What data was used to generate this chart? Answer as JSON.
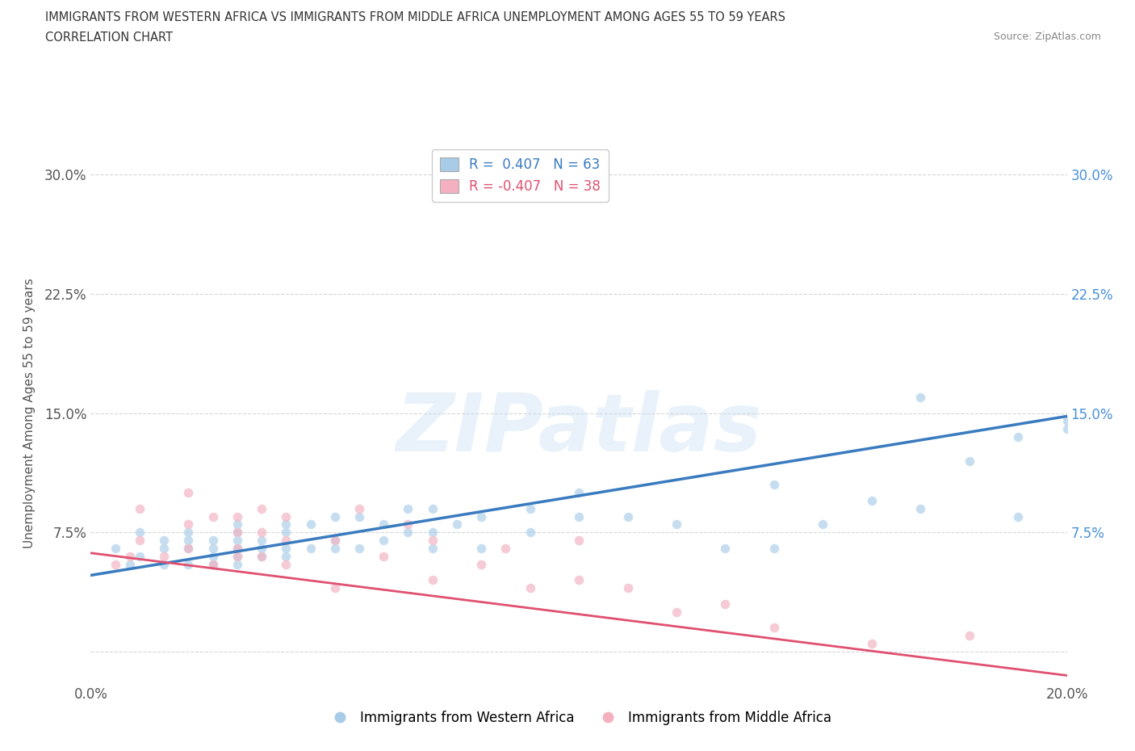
{
  "title_line1": "IMMIGRANTS FROM WESTERN AFRICA VS IMMIGRANTS FROM MIDDLE AFRICA UNEMPLOYMENT AMONG AGES 55 TO 59 YEARS",
  "title_line2": "CORRELATION CHART",
  "source_text": "Source: ZipAtlas.com",
  "ylabel": "Unemployment Among Ages 55 to 59 years",
  "xlim": [
    0.0,
    0.2
  ],
  "ylim": [
    -0.02,
    0.32
  ],
  "r_blue": 0.407,
  "n_blue": 63,
  "r_pink": -0.407,
  "n_pink": 38,
  "blue_color": "#a8cce8",
  "pink_color": "#f4b0c0",
  "blue_line_color": "#3a7bbf",
  "pink_line_color": "#e05070",
  "legend_blue_label": "R =  0.407   N = 63",
  "legend_pink_label": "R = -0.407   N = 38",
  "blue_scatter_x": [
    0.005,
    0.008,
    0.01,
    0.01,
    0.015,
    0.015,
    0.015,
    0.02,
    0.02,
    0.02,
    0.02,
    0.025,
    0.025,
    0.025,
    0.025,
    0.03,
    0.03,
    0.03,
    0.03,
    0.03,
    0.03,
    0.035,
    0.035,
    0.035,
    0.04,
    0.04,
    0.04,
    0.04,
    0.045,
    0.045,
    0.05,
    0.05,
    0.05,
    0.055,
    0.055,
    0.06,
    0.06,
    0.065,
    0.065,
    0.07,
    0.07,
    0.07,
    0.075,
    0.08,
    0.08,
    0.09,
    0.09,
    0.1,
    0.1,
    0.11,
    0.12,
    0.13,
    0.14,
    0.14,
    0.15,
    0.16,
    0.17,
    0.17,
    0.18,
    0.19,
    0.19,
    0.2,
    0.2
  ],
  "blue_scatter_y": [
    0.065,
    0.055,
    0.06,
    0.075,
    0.055,
    0.065,
    0.07,
    0.055,
    0.065,
    0.07,
    0.075,
    0.055,
    0.06,
    0.065,
    0.07,
    0.055,
    0.06,
    0.065,
    0.07,
    0.075,
    0.08,
    0.06,
    0.065,
    0.07,
    0.06,
    0.065,
    0.075,
    0.08,
    0.065,
    0.08,
    0.065,
    0.07,
    0.085,
    0.065,
    0.085,
    0.07,
    0.08,
    0.075,
    0.09,
    0.065,
    0.075,
    0.09,
    0.08,
    0.065,
    0.085,
    0.075,
    0.09,
    0.085,
    0.1,
    0.085,
    0.08,
    0.065,
    0.065,
    0.105,
    0.08,
    0.095,
    0.09,
    0.16,
    0.12,
    0.085,
    0.135,
    0.14,
    0.145
  ],
  "pink_scatter_x": [
    0.005,
    0.008,
    0.01,
    0.01,
    0.015,
    0.02,
    0.02,
    0.02,
    0.025,
    0.025,
    0.03,
    0.03,
    0.03,
    0.03,
    0.035,
    0.035,
    0.035,
    0.04,
    0.04,
    0.04,
    0.05,
    0.05,
    0.055,
    0.06,
    0.065,
    0.07,
    0.07,
    0.08,
    0.085,
    0.09,
    0.1,
    0.1,
    0.11,
    0.12,
    0.13,
    0.14,
    0.16,
    0.18
  ],
  "pink_scatter_y": [
    0.055,
    0.06,
    0.07,
    0.09,
    0.06,
    0.065,
    0.08,
    0.1,
    0.055,
    0.085,
    0.06,
    0.065,
    0.075,
    0.085,
    0.06,
    0.075,
    0.09,
    0.055,
    0.07,
    0.085,
    0.04,
    0.07,
    0.09,
    0.06,
    0.08,
    0.045,
    0.07,
    0.055,
    0.065,
    0.04,
    0.045,
    0.07,
    0.04,
    0.025,
    0.03,
    0.015,
    0.005,
    0.01
  ],
  "blue_trend_x": [
    0.0,
    0.2
  ],
  "blue_trend_y": [
    0.048,
    0.148
  ],
  "pink_trend_x": [
    0.0,
    0.2
  ],
  "pink_trend_y": [
    0.062,
    -0.015
  ],
  "scatter_size": 60,
  "scatter_alpha": 0.65,
  "grid_color": "#bbbbbb",
  "background_color": "#ffffff"
}
